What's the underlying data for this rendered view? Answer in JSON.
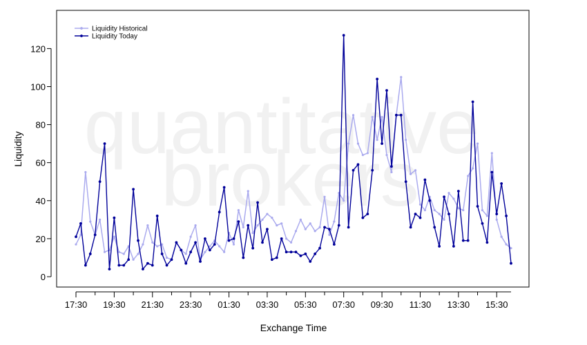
{
  "chart_data": {
    "type": "line",
    "title": "",
    "xlabel": "Exchange Time",
    "ylabel": "Liquidity",
    "ylim": [
      -8,
      138
    ],
    "yticks": [
      0,
      20,
      40,
      60,
      80,
      100,
      120
    ],
    "x_tick_labels": [
      "17:30",
      "19:30",
      "21:30",
      "23:30",
      "01:30",
      "03:30",
      "05:30",
      "07:30",
      "09:30",
      "11:30",
      "13:30",
      "15:30"
    ],
    "x_interval_minutes": 15,
    "points_per_day": 92,
    "legend_position": "top-left",
    "watermark": [
      "quantitative",
      "brokers"
    ],
    "series": [
      {
        "name": "Liquidity Historical",
        "color": "#aaaaee",
        "values": [
          17,
          22,
          55,
          29,
          22,
          30,
          13,
          14,
          21,
          13,
          12,
          16,
          9,
          12,
          17,
          27,
          18,
          16,
          17,
          10,
          9,
          18,
          14,
          12,
          21,
          27,
          9,
          13,
          16,
          19,
          16,
          13,
          23,
          17,
          35,
          26,
          45,
          23,
          27,
          30,
          33,
          31,
          27,
          28,
          20,
          18,
          24,
          30,
          25,
          28,
          24,
          26,
          42,
          22,
          29,
          44,
          40,
          70,
          85,
          70,
          64,
          65,
          84,
          72,
          84,
          64,
          55,
          85,
          105,
          72,
          54,
          56,
          38,
          35,
          42,
          35,
          33,
          30,
          44,
          41,
          36,
          35,
          53,
          57,
          70,
          35,
          32,
          65,
          30,
          21,
          17,
          15
        ]
      },
      {
        "name": "Liquidity Today",
        "color": "#000099",
        "values": [
          21,
          28,
          6,
          12,
          22,
          50,
          70,
          4,
          31,
          6,
          6,
          9,
          46,
          19,
          4,
          7,
          6,
          32,
          12,
          6,
          9,
          18,
          14,
          7,
          13,
          18,
          8,
          20,
          14,
          17,
          34,
          47,
          19,
          20,
          29,
          10,
          27,
          15,
          39,
          18,
          25,
          9,
          10,
          20,
          13,
          13,
          13,
          11,
          12,
          8,
          12,
          15,
          26,
          25,
          17,
          27,
          127,
          26,
          56,
          59,
          31,
          33,
          56,
          104,
          70,
          98,
          58,
          85,
          85,
          50,
          26,
          33,
          31,
          51,
          40,
          26,
          16,
          42,
          33,
          16,
          45,
          19,
          19,
          92,
          37,
          28,
          18,
          55,
          33,
          49,
          32,
          7
        ]
      }
    ]
  }
}
